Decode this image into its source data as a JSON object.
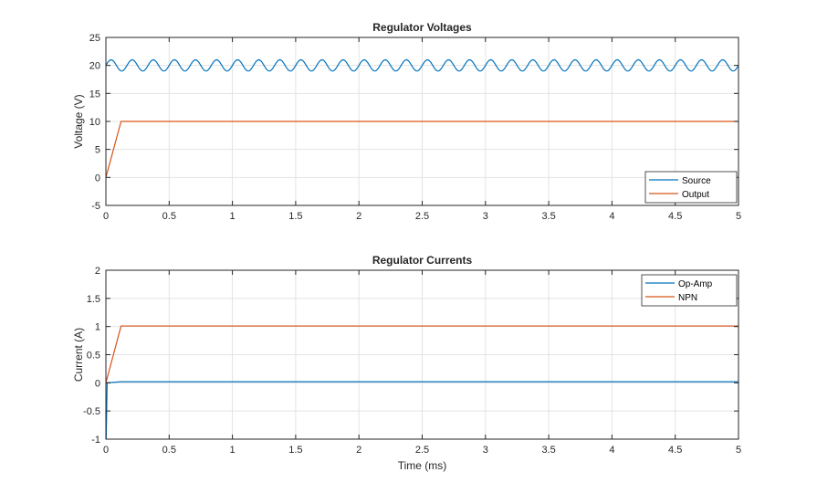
{
  "chart_data": [
    {
      "type": "line",
      "title": "Regulator Voltages",
      "xlabel": "",
      "ylabel": "Voltage (V)",
      "xlim": [
        0,
        5
      ],
      "ylim": [
        -5,
        25
      ],
      "xticks": [
        0,
        0.5,
        1,
        1.5,
        2,
        2.5,
        3,
        3.5,
        4,
        4.5,
        5
      ],
      "yticks": [
        -5,
        0,
        5,
        10,
        15,
        20,
        25
      ],
      "grid": true,
      "legend_position": "bottom-right",
      "series": [
        {
          "name": "Source",
          "color": "#0072BD",
          "description": "Sinusoidal ripple around 20 V, amplitude about 1 V, about 30 cycles over 5 ms",
          "offset": 20,
          "amplitude": 1,
          "cycles": 30,
          "x": [
            0,
            5
          ],
          "y": [
            20,
            20
          ]
        },
        {
          "name": "Output",
          "color": "#D95319",
          "x": [
            0,
            0.12,
            5
          ],
          "y": [
            0,
            10,
            10
          ]
        }
      ]
    },
    {
      "type": "line",
      "title": "Regulator Currents",
      "xlabel": "Time (ms)",
      "ylabel": "Current (A)",
      "xlim": [
        0,
        5
      ],
      "ylim": [
        -1,
        2
      ],
      "xticks": [
        0,
        0.5,
        1,
        1.5,
        2,
        2.5,
        3,
        3.5,
        4,
        4.5,
        5
      ],
      "yticks": [
        -1,
        -0.5,
        0,
        0.5,
        1,
        1.5,
        2
      ],
      "grid": true,
      "legend_position": "top-right",
      "series": [
        {
          "name": "Op-Amp",
          "color": "#0072BD",
          "x": [
            0,
            0.002,
            0.01,
            0.12,
            5
          ],
          "y": [
            -0.5,
            -1,
            0,
            0.02,
            0.02
          ]
        },
        {
          "name": "NPN",
          "color": "#D95319",
          "x": [
            0,
            0.12,
            5
          ],
          "y": [
            0,
            1.01,
            1.01
          ]
        }
      ]
    }
  ]
}
